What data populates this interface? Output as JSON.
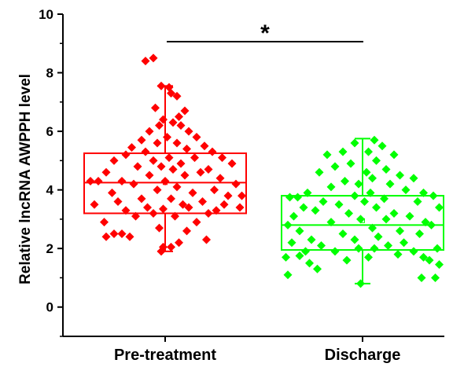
{
  "chart_data": {
    "type": "box-scatter",
    "ylabel": "Relative lncRNA AWPPH level",
    "ylim": [
      -1,
      10
    ],
    "yticks": [
      0,
      2,
      4,
      6,
      8,
      10
    ],
    "categories": [
      "Pre-treatment",
      "Discharge"
    ],
    "colors": {
      "Pre-treatment": "#ff0000",
      "Discharge": "#00ff00"
    },
    "significance": "*",
    "boxes": [
      {
        "category": "Pre-treatment",
        "min": 1.9,
        "q1": 3.2,
        "median": 4.25,
        "mean": 4.25,
        "q3": 5.25,
        "max": 7.55
      },
      {
        "category": "Discharge",
        "min": 0.8,
        "q1": 1.95,
        "median": 2.8,
        "mean": 2.95,
        "q3": 3.8,
        "max": 5.75
      }
    ],
    "series": [
      {
        "category": "Pre-treatment",
        "points": [
          [
            -0.5,
            8.4
          ],
          [
            -0.3,
            8.5
          ],
          [
            -0.1,
            7.55
          ],
          [
            0.1,
            7.5
          ],
          [
            0.3,
            7.2
          ],
          [
            0.15,
            7.3
          ],
          [
            -0.25,
            6.8
          ],
          [
            0.5,
            6.7
          ],
          [
            0.35,
            6.5
          ],
          [
            -0.05,
            6.4
          ],
          [
            0.2,
            6.3
          ],
          [
            -0.15,
            6.2
          ],
          [
            0.4,
            6.2
          ],
          [
            0.6,
            6.0
          ],
          [
            -0.4,
            6.0
          ],
          [
            0.8,
            5.8
          ],
          [
            -0.6,
            5.7
          ],
          [
            0.05,
            5.8
          ],
          [
            -0.2,
            5.6
          ],
          [
            0.3,
            5.6
          ],
          [
            1.0,
            5.5
          ],
          [
            -0.85,
            5.45
          ],
          [
            -0.5,
            5.3
          ],
          [
            0.55,
            5.4
          ],
          [
            1.2,
            5.3
          ],
          [
            -1.0,
            5.2
          ],
          [
            1.45,
            5.1
          ],
          [
            -0.3,
            5.0
          ],
          [
            0.1,
            5.1
          ],
          [
            0.75,
            5.1
          ],
          [
            -1.3,
            5.0
          ],
          [
            0.4,
            4.9
          ],
          [
            1.7,
            4.9
          ],
          [
            -0.7,
            4.8
          ],
          [
            -0.1,
            4.8
          ],
          [
            0.2,
            4.7
          ],
          [
            1.1,
            4.7
          ],
          [
            -1.5,
            4.6
          ],
          [
            0.9,
            4.6
          ],
          [
            0.5,
            4.5
          ],
          [
            -0.4,
            4.5
          ],
          [
            1.4,
            4.4
          ],
          [
            -1.9,
            4.3
          ],
          [
            -1.7,
            4.3
          ],
          [
            -1.1,
            4.3
          ],
          [
            0.0,
            4.3
          ],
          [
            1.8,
            4.2
          ],
          [
            -0.8,
            4.2
          ],
          [
            0.3,
            4.1
          ],
          [
            -0.2,
            4.0
          ],
          [
            1.25,
            4.0
          ],
          [
            -1.35,
            3.9
          ],
          [
            0.7,
            3.9
          ],
          [
            1.6,
            3.8
          ],
          [
            1.95,
            3.8
          ],
          [
            -0.6,
            3.7
          ],
          [
            0.15,
            3.7
          ],
          [
            -1.2,
            3.6
          ],
          [
            0.95,
            3.6
          ],
          [
            1.5,
            3.5
          ],
          [
            -1.8,
            3.5
          ],
          [
            0.45,
            3.5
          ],
          [
            -0.45,
            3.4
          ],
          [
            0.6,
            3.4
          ],
          [
            1.9,
            3.4
          ],
          [
            -0.05,
            3.35
          ],
          [
            -1.0,
            3.3
          ],
          [
            1.3,
            3.3
          ],
          [
            -0.3,
            3.2
          ],
          [
            1.1,
            3.2
          ],
          [
            -0.75,
            3.1
          ],
          [
            0.25,
            3.1
          ],
          [
            -1.55,
            2.9
          ],
          [
            0.8,
            2.9
          ],
          [
            -0.15,
            2.7
          ],
          [
            0.55,
            2.6
          ],
          [
            -1.3,
            2.5
          ],
          [
            -1.1,
            2.5
          ],
          [
            -1.5,
            2.4
          ],
          [
            -0.9,
            2.4
          ],
          [
            1.05,
            2.3
          ],
          [
            0.35,
            2.2
          ],
          [
            -0.05,
            2.05
          ],
          [
            0.15,
            2.05
          ],
          [
            -0.1,
            1.9
          ]
        ]
      },
      {
        "category": "Discharge",
        "points": [
          [
            0.3,
            5.7
          ],
          [
            -0.2,
            5.6
          ],
          [
            0.5,
            5.5
          ],
          [
            -0.5,
            5.3
          ],
          [
            0.15,
            5.3
          ],
          [
            -0.9,
            5.2
          ],
          [
            0.8,
            5.2
          ],
          [
            0.35,
            5.0
          ],
          [
            -0.3,
            4.9
          ],
          [
            -0.7,
            4.8
          ],
          [
            0.6,
            4.7
          ],
          [
            0.1,
            4.6
          ],
          [
            -1.1,
            4.6
          ],
          [
            0.95,
            4.5
          ],
          [
            1.3,
            4.4
          ],
          [
            0.25,
            4.4
          ],
          [
            -0.45,
            4.3
          ],
          [
            0.7,
            4.2
          ],
          [
            -0.1,
            4.2
          ],
          [
            -0.8,
            4.1
          ],
          [
            1.1,
            4.0
          ],
          [
            -1.4,
            3.9
          ],
          [
            1.55,
            3.9
          ],
          [
            0.2,
            3.9
          ],
          [
            1.8,
            3.8
          ],
          [
            -1.85,
            3.75
          ],
          [
            -1.65,
            3.75
          ],
          [
            -0.2,
            3.8
          ],
          [
            0.55,
            3.7
          ],
          [
            -1.0,
            3.6
          ],
          [
            1.4,
            3.6
          ],
          [
            0.05,
            3.6
          ],
          [
            -0.6,
            3.5
          ],
          [
            1.95,
            3.4
          ],
          [
            -1.5,
            3.4
          ],
          [
            0.35,
            3.4
          ],
          [
            -1.2,
            3.3
          ],
          [
            0.8,
            3.2
          ],
          [
            -0.35,
            3.2
          ],
          [
            1.2,
            3.1
          ],
          [
            -1.75,
            3.1
          ],
          [
            0.6,
            3.0
          ],
          [
            -0.05,
            3.0
          ],
          [
            1.6,
            2.9
          ],
          [
            -0.8,
            2.9
          ],
          [
            -1.9,
            2.8
          ],
          [
            0.25,
            2.7
          ],
          [
            1.75,
            2.8
          ],
          [
            -1.6,
            2.6
          ],
          [
            0.95,
            2.6
          ],
          [
            -0.5,
            2.5
          ],
          [
            1.45,
            2.5
          ],
          [
            -1.3,
            2.3
          ],
          [
            0.4,
            2.4
          ],
          [
            -0.2,
            2.3
          ],
          [
            1.05,
            2.2
          ],
          [
            -1.8,
            2.2
          ],
          [
            0.65,
            2.1
          ],
          [
            -1.05,
            2.1
          ],
          [
            1.9,
            2.0
          ],
          [
            -0.1,
            2.0
          ],
          [
            0.3,
            2.0
          ],
          [
            -1.45,
            1.9
          ],
          [
            1.3,
            1.9
          ],
          [
            -0.7,
            1.9
          ],
          [
            0.9,
            1.8
          ],
          [
            -1.6,
            1.75
          ],
          [
            1.55,
            1.7
          ],
          [
            -1.95,
            1.7
          ],
          [
            0.15,
            1.7
          ],
          [
            -0.4,
            1.6
          ],
          [
            1.7,
            1.6
          ],
          [
            -1.35,
            1.5
          ],
          [
            1.95,
            1.45
          ],
          [
            -1.15,
            1.3
          ],
          [
            1.85,
            1.0
          ],
          [
            1.5,
            1.0
          ],
          [
            -1.9,
            1.1
          ],
          [
            -0.05,
            0.8
          ]
        ]
      }
    ]
  }
}
